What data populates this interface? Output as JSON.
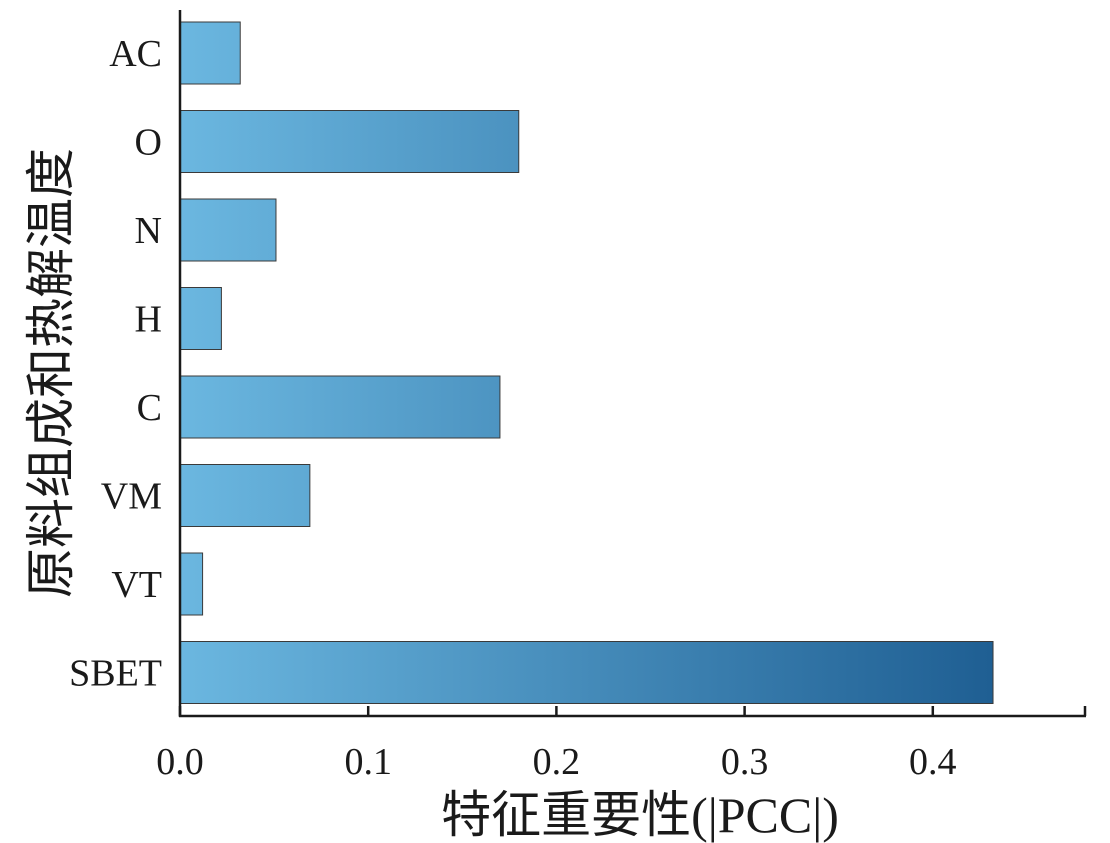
{
  "chart_data": {
    "type": "bar",
    "orientation": "horizontal",
    "categories": [
      "AC",
      "O",
      "N",
      "H",
      "C",
      "VM",
      "VT",
      "SBET"
    ],
    "values": [
      0.032,
      0.18,
      0.051,
      0.022,
      0.17,
      0.069,
      0.012,
      0.432
    ],
    "xlabel": "特征重要性(|PCC|)",
    "ylabel": "原料组成和热解温度",
    "xlim": [
      0,
      0.48
    ],
    "xticks": [
      "0.0",
      "0.1",
      "0.2",
      "0.3",
      "0.4"
    ],
    "grid": false,
    "colors": {
      "bar_light": "#6bb7e0",
      "bar_dark": "#1f5f93",
      "bar_edge": "#3a3a3a",
      "axis": "#1a1a1a"
    }
  }
}
